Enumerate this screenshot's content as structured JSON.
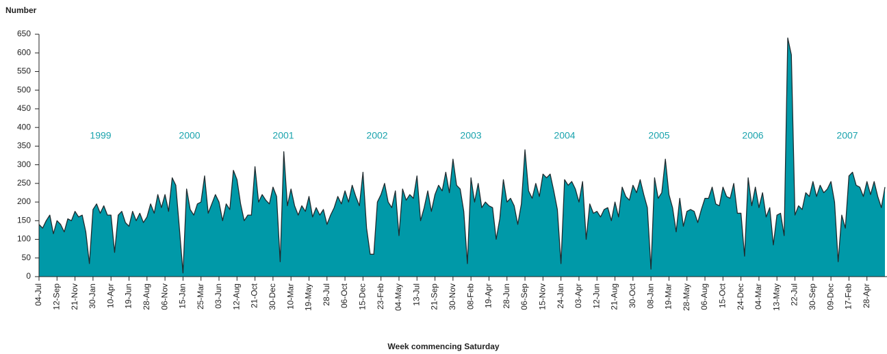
{
  "chart_data": {
    "type": "area",
    "title": "Number",
    "xlabel": "Week commencing Saturday",
    "annotations": [
      "1999",
      "2000",
      "2001",
      "2002",
      "2003",
      "2004",
      "2005",
      "2006",
      "2007"
    ],
    "color": "#0099a8",
    "line_color": "#1f2a2e",
    "ylim": [
      0,
      650
    ],
    "yticks": [
      0,
      50,
      100,
      150,
      200,
      250,
      300,
      350,
      400,
      450,
      500,
      550,
      600,
      650
    ],
    "categories": [
      "04-Jul",
      null,
      null,
      null,
      null,
      "12-Sep",
      null,
      null,
      null,
      null,
      "21-Nov",
      null,
      null,
      null,
      null,
      "30-Jan",
      null,
      null,
      null,
      null,
      "10-Apr",
      null,
      null,
      null,
      null,
      "19-Jun",
      null,
      null,
      null,
      null,
      "28-Aug",
      null,
      null,
      null,
      null,
      "06-Nov",
      null,
      null,
      null,
      null,
      "15-Jan",
      null,
      null,
      null,
      null,
      "25-Mar",
      null,
      null,
      null,
      null,
      "03-Jun",
      null,
      null,
      null,
      null,
      "12-Aug",
      null,
      null,
      null,
      null,
      "21-Oct",
      null,
      null,
      null,
      null,
      "30-Dec",
      null,
      null,
      null,
      null,
      "10-Mar",
      null,
      null,
      null,
      null,
      "19-May",
      null,
      null,
      null,
      null,
      "28-Jul",
      null,
      null,
      null,
      null,
      "06-Oct",
      null,
      null,
      null,
      null,
      "15-Dec",
      null,
      null,
      null,
      null,
      "23-Feb",
      null,
      null,
      null,
      null,
      "04-May",
      null,
      null,
      null,
      null,
      "13-Jul",
      null,
      null,
      null,
      null,
      "21-Sep",
      null,
      null,
      null,
      null,
      "30-Nov",
      null,
      null,
      null,
      null,
      "08-Feb",
      null,
      null,
      null,
      null,
      "19-Apr",
      null,
      null,
      null,
      null,
      "28-Jun",
      null,
      null,
      null,
      null,
      "06-Sep",
      null,
      null,
      null,
      null,
      "15-Nov",
      null,
      null,
      null,
      null,
      "24-Jan",
      null,
      null,
      null,
      null,
      "03-Apr",
      null,
      null,
      null,
      null,
      "12-Jun",
      null,
      null,
      null,
      null,
      "21-Aug",
      null,
      null,
      null,
      null,
      "30-Oct",
      null,
      null,
      null,
      null,
      "08-Jan",
      null,
      null,
      null,
      null,
      "19-Mar",
      null,
      null,
      null,
      null,
      "28-May",
      null,
      null,
      null,
      null,
      "06-Aug",
      null,
      null,
      null,
      null,
      "15-Oct",
      null,
      null,
      null,
      null,
      "24-Dec",
      null,
      null,
      null,
      null,
      "04-Mar",
      null,
      null,
      null,
      null,
      "13-May",
      null,
      null,
      null,
      null,
      "22-Jul",
      null,
      null,
      null,
      null,
      "30-Sep",
      null,
      null,
      null,
      null,
      "09-Dec",
      null,
      null,
      null,
      null,
      "17-Feb",
      null,
      null,
      null,
      null,
      "28-Apr",
      null,
      null,
      null,
      null,
      null
    ],
    "values": [
      140,
      130,
      150,
      165,
      115,
      150,
      140,
      120,
      155,
      150,
      175,
      160,
      165,
      120,
      35,
      180,
      195,
      170,
      190,
      165,
      165,
      65,
      165,
      175,
      145,
      135,
      175,
      150,
      170,
      145,
      160,
      195,
      170,
      220,
      185,
      220,
      175,
      265,
      245,
      130,
      10,
      235,
      180,
      165,
      195,
      200,
      270,
      170,
      195,
      220,
      200,
      150,
      195,
      180,
      285,
      260,
      195,
      150,
      165,
      165,
      295,
      200,
      220,
      205,
      195,
      240,
      215,
      40,
      335,
      190,
      235,
      190,
      165,
      190,
      175,
      215,
      160,
      185,
      165,
      180,
      140,
      165,
      185,
      215,
      195,
      230,
      200,
      245,
      215,
      190,
      280,
      130,
      60,
      60,
      200,
      220,
      250,
      200,
      185,
      230,
      110,
      235,
      205,
      220,
      210,
      270,
      150,
      185,
      230,
      175,
      220,
      245,
      230,
      280,
      225,
      315,
      245,
      235,
      175,
      35,
      265,
      200,
      250,
      185,
      200,
      190,
      185,
      100,
      155,
      260,
      200,
      210,
      190,
      140,
      195,
      340,
      230,
      210,
      250,
      215,
      275,
      265,
      275,
      230,
      180,
      35,
      260,
      245,
      255,
      235,
      200,
      255,
      100,
      195,
      170,
      175,
      160,
      180,
      185,
      150,
      200,
      160,
      240,
      215,
      205,
      245,
      225,
      260,
      220,
      185,
      20,
      265,
      210,
      225,
      315,
      220,
      185,
      120,
      210,
      135,
      175,
      180,
      175,
      145,
      180,
      210,
      210,
      240,
      195,
      190,
      240,
      215,
      210,
      250,
      170,
      170,
      55,
      265,
      190,
      240,
      185,
      225,
      160,
      185,
      85,
      165,
      170,
      110,
      640,
      595,
      165,
      190,
      180,
      225,
      215,
      255,
      215,
      245,
      225,
      235,
      255,
      200,
      40,
      165,
      130,
      270,
      280,
      245,
      240,
      215,
      255,
      220,
      255,
      215,
      185,
      240
    ]
  }
}
